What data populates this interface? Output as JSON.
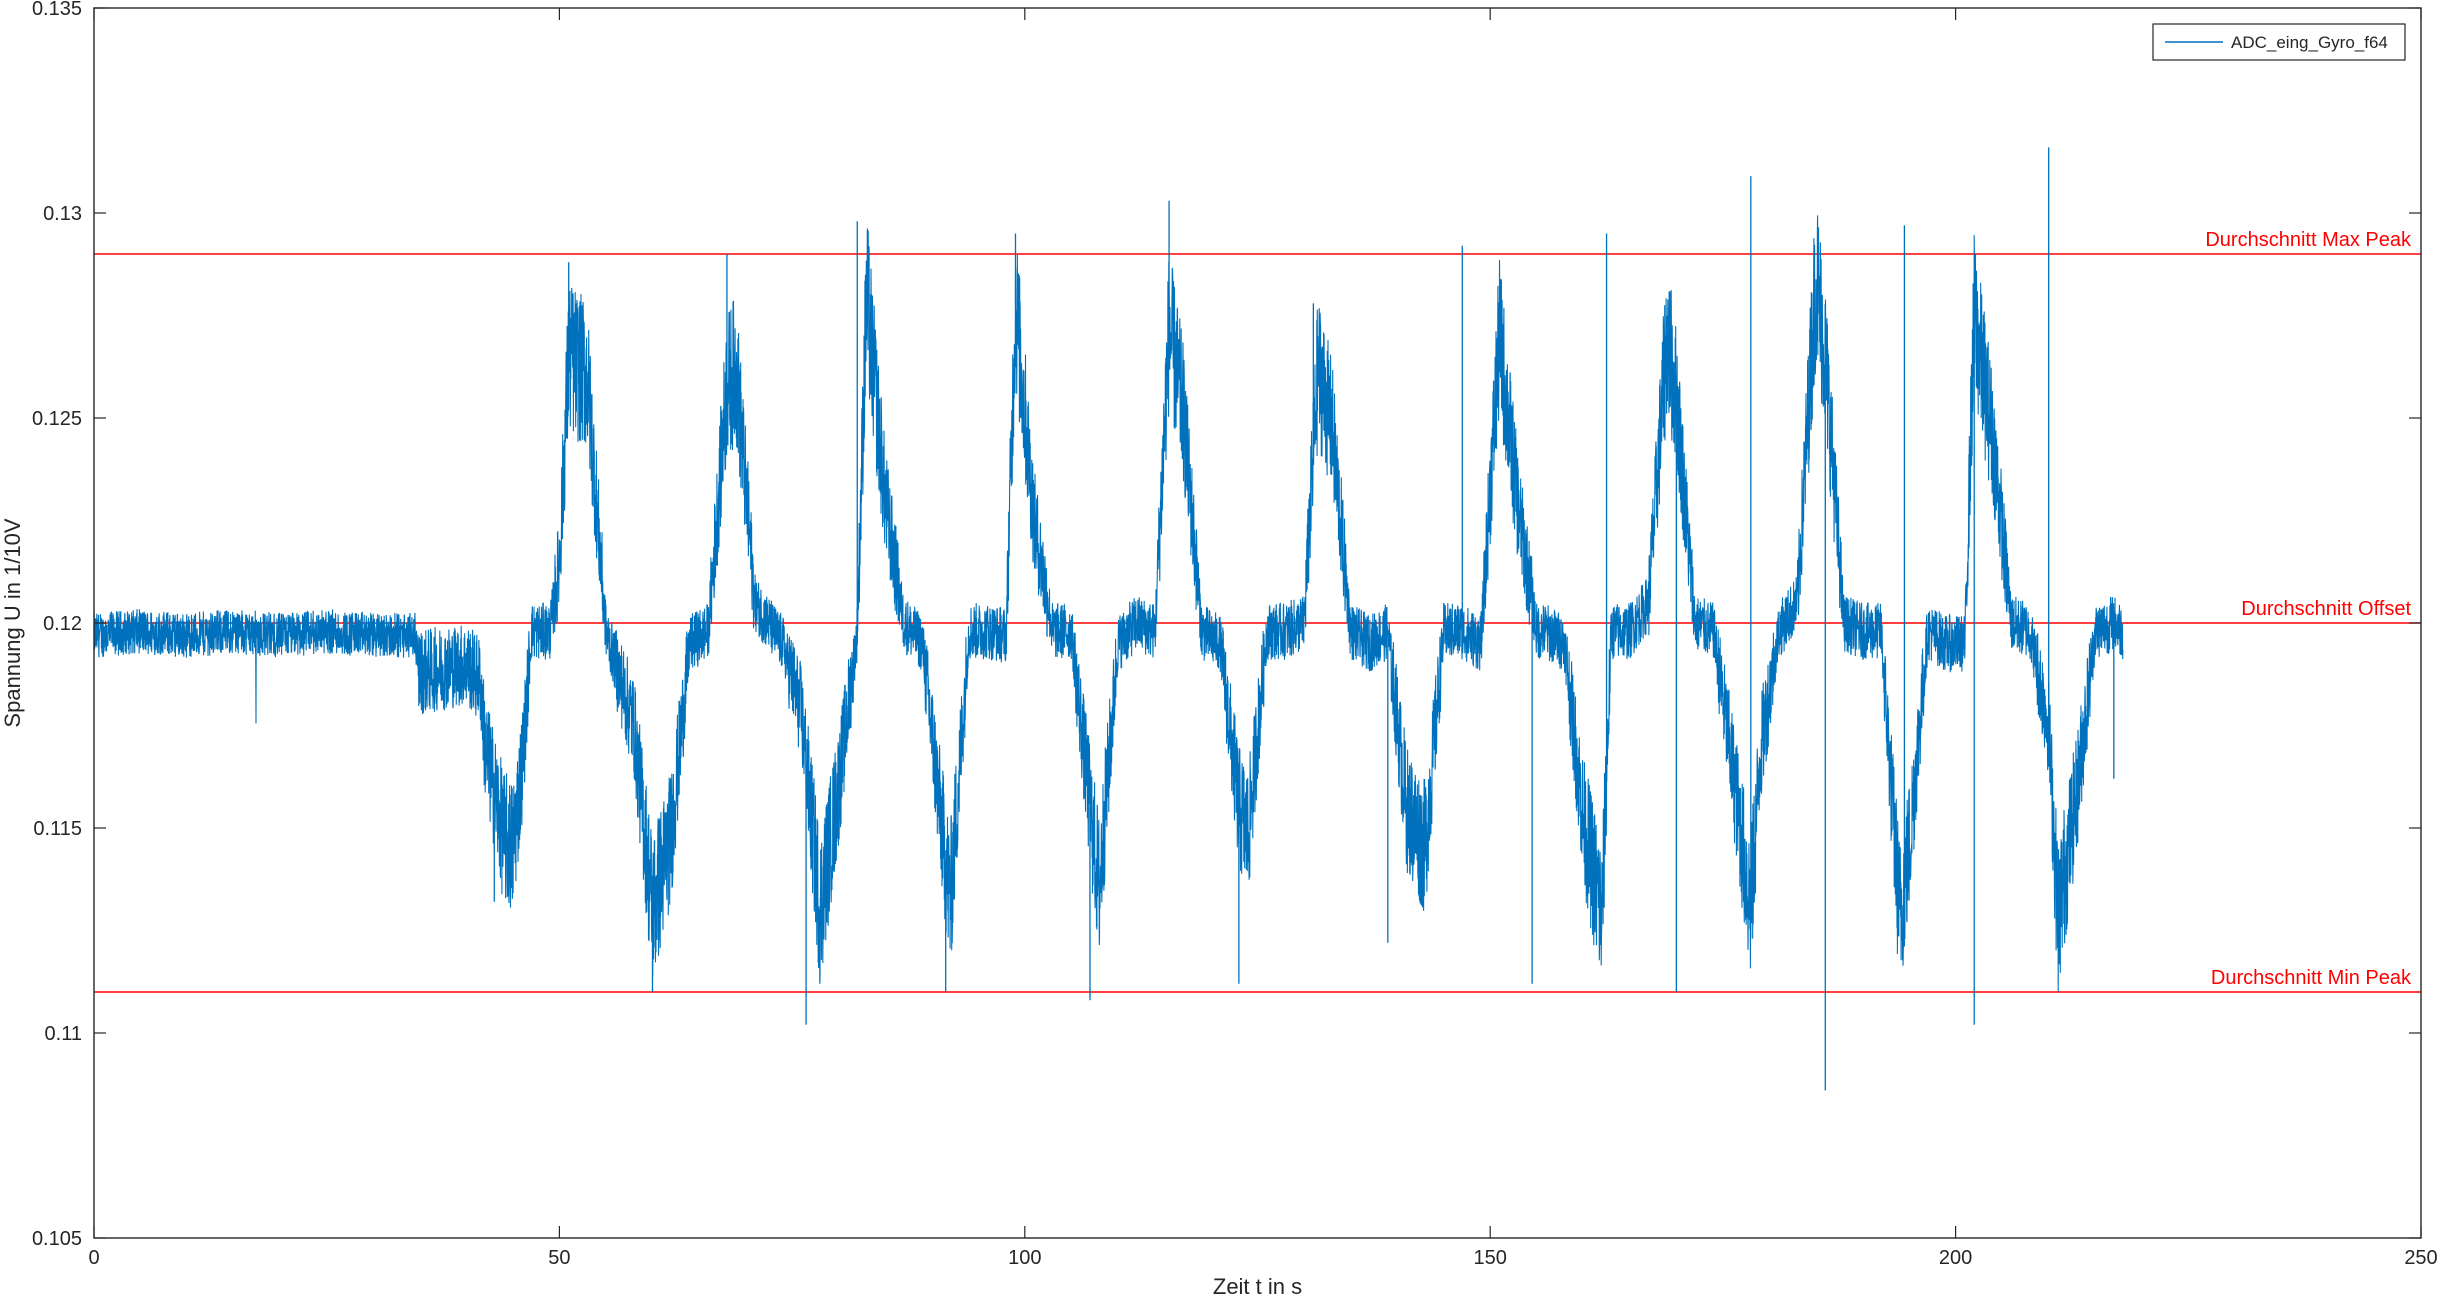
{
  "chart_data": {
    "type": "line",
    "xlabel": "Zeit t in s",
    "ylabel": "Spannung U in 1/10V",
    "xlim": [
      0,
      250
    ],
    "ylim": [
      0.105,
      0.135
    ],
    "x_ticks": [
      0,
      50,
      100,
      150,
      200,
      250
    ],
    "x_tick_labels": [
      "0",
      "50",
      "100",
      "150",
      "200",
      "250"
    ],
    "y_ticks": [
      0.105,
      0.11,
      0.115,
      0.12,
      0.125,
      0.13,
      0.135
    ],
    "y_tick_labels": [
      "0.105",
      "0.11",
      "0.115",
      "0.12",
      "0.125",
      "0.13",
      "0.135"
    ],
    "grid": false,
    "legend": {
      "location": "top-right",
      "entries": [
        "ADC_eing_Gyro_f64"
      ]
    },
    "series": [
      {
        "name": "ADC_eing_Gyro_f64",
        "color": "#0072BD",
        "x": [
          0,
          5,
          10,
          15,
          20,
          25,
          30,
          34.5,
          35,
          40,
          41.5,
          42,
          44,
          45,
          46,
          47,
          49,
          50,
          51,
          53,
          55,
          58,
          60,
          62,
          64,
          66,
          68,
          69,
          71,
          73,
          74,
          76,
          78,
          80,
          82,
          83,
          85,
          87,
          89,
          91,
          92,
          94,
          96,
          98,
          99,
          101,
          103,
          105,
          107,
          108,
          110,
          112,
          114,
          115.5,
          117,
          119,
          121,
          123,
          124,
          126,
          128,
          130,
          131.5,
          133,
          135,
          137,
          139,
          141,
          143,
          145,
          147,
          149,
          151,
          153,
          155,
          156,
          158,
          160,
          162,
          163,
          165,
          167,
          169,
          170,
          172,
          174,
          176,
          178,
          179,
          181,
          183,
          185,
          186,
          188,
          190,
          192,
          194,
          195,
          197,
          199,
          201,
          202,
          204,
          206,
          208,
          210,
          211,
          213,
          215,
          217,
          218
        ],
        "y": [
          0.1197,
          0.1198,
          0.1197,
          0.1198,
          0.1197,
          0.1198,
          0.1197,
          0.1197,
          0.1188,
          0.119,
          0.1186,
          0.117,
          0.1148,
          0.1145,
          0.1165,
          0.1198,
          0.1198,
          0.1215,
          0.1265,
          0.126,
          0.1198,
          0.1175,
          0.113,
          0.1148,
          0.1195,
          0.1198,
          0.1258,
          0.1262,
          0.1205,
          0.1198,
          0.1195,
          0.1178,
          0.113,
          0.116,
          0.1198,
          0.128,
          0.123,
          0.12,
          0.1195,
          0.1152,
          0.1132,
          0.1198,
          0.1198,
          0.1197,
          0.1278,
          0.1225,
          0.1198,
          0.1198,
          0.1155,
          0.1135,
          0.1195,
          0.12,
          0.1198,
          0.1272,
          0.1252,
          0.1198,
          0.1195,
          0.1155,
          0.1148,
          0.1198,
          0.1198,
          0.12,
          0.1262,
          0.1248,
          0.1198,
          0.1195,
          0.1198,
          0.1155,
          0.1145,
          0.1198,
          0.1198,
          0.1195,
          0.127,
          0.1228,
          0.1198,
          0.1198,
          0.1195,
          0.1152,
          0.1128,
          0.1198,
          0.1198,
          0.1205,
          0.127,
          0.1255,
          0.12,
          0.1198,
          0.1165,
          0.113,
          0.1168,
          0.1198,
          0.1205,
          0.1285,
          0.1265,
          0.12,
          0.1198,
          0.1198,
          0.1128,
          0.1145,
          0.1198,
          0.1195,
          0.1195,
          0.1275,
          0.1245,
          0.12,
          0.1198,
          0.1175,
          0.1128,
          0.1158,
          0.1198,
          0.12,
          0.1198
        ]
      }
    ],
    "reference_lines": [
      {
        "label": "Durchschnitt Max Peak",
        "y": 0.129,
        "color": "#FF0000"
      },
      {
        "label": "Durchschnitt Offset",
        "y": 0.12,
        "color": "#FF0000"
      },
      {
        "label": "Durchschnitt Min Peak",
        "y": 0.111,
        "color": "#FF0000"
      }
    ],
    "peaks": [
      {
        "t": 51,
        "max": 0.1288,
        "min": 0.1132
      },
      {
        "t": 68,
        "max": 0.129,
        "min": 0.111
      },
      {
        "t": 82,
        "max": 0.1298,
        "min": 0.1102
      },
      {
        "t": 99,
        "max": 0.1295,
        "min": 0.111
      },
      {
        "t": 115.5,
        "max": 0.1303,
        "min": 0.1108
      },
      {
        "t": 131,
        "max": 0.1278,
        "min": 0.1112
      },
      {
        "t": 147,
        "max": 0.1292,
        "min": 0.1122
      },
      {
        "t": 162.5,
        "max": 0.1295,
        "min": 0.1112
      },
      {
        "t": 178,
        "max": 0.1309,
        "min": 0.111
      },
      {
        "t": 194.5,
        "max": 0.1297,
        "min": 0.1086
      },
      {
        "t": 210,
        "max": 0.1316,
        "min": 0.1102
      }
    ]
  }
}
